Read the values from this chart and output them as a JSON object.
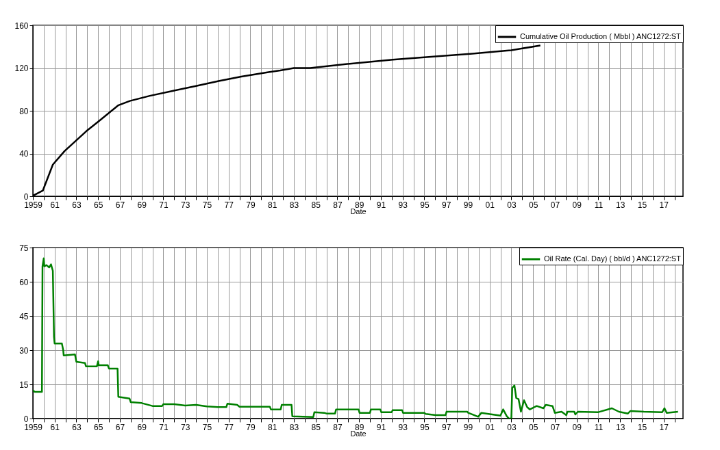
{
  "chart_data": [
    {
      "type": "line",
      "xlabel": "Date",
      "xlim": [
        "1959-01-01",
        "2018-10-15"
      ],
      "xticks": [
        {
          "value": "1959",
          "label": "1959"
        },
        {
          "value": "1960",
          "label": null
        },
        {
          "value": "1961",
          "label": "61"
        },
        {
          "value": "1962",
          "label": null
        },
        {
          "value": "1963",
          "label": "63"
        },
        {
          "value": "1964",
          "label": null
        },
        {
          "value": "1965",
          "label": "65"
        },
        {
          "value": "1966",
          "label": null
        },
        {
          "value": "1967",
          "label": "67"
        },
        {
          "value": "1968",
          "label": null
        },
        {
          "value": "1969",
          "label": "69"
        },
        {
          "value": "1970",
          "label": null
        },
        {
          "value": "1971",
          "label": "71"
        },
        {
          "value": "1972",
          "label": null
        },
        {
          "value": "1973",
          "label": "73"
        },
        {
          "value": "1974",
          "label": null
        },
        {
          "value": "1975",
          "label": "75"
        },
        {
          "value": "1976",
          "label": null
        },
        {
          "value": "1977",
          "label": "77"
        },
        {
          "value": "1978",
          "label": null
        },
        {
          "value": "1979",
          "label": "79"
        },
        {
          "value": "1980",
          "label": null
        },
        {
          "value": "1981",
          "label": "81"
        },
        {
          "value": "1982",
          "label": null
        },
        {
          "value": "1983",
          "label": "83"
        },
        {
          "value": "1984",
          "label": null
        },
        {
          "value": "1985",
          "label": "85"
        },
        {
          "value": "1986",
          "label": null
        },
        {
          "value": "1987",
          "label": "87"
        },
        {
          "value": "1988",
          "label": null
        },
        {
          "value": "1989",
          "label": "89"
        },
        {
          "value": "1990",
          "label": null
        },
        {
          "value": "1991",
          "label": "91"
        },
        {
          "value": "1992",
          "label": null
        },
        {
          "value": "1993",
          "label": "93"
        },
        {
          "value": "1994",
          "label": null
        },
        {
          "value": "1995",
          "label": "95"
        },
        {
          "value": "1996",
          "label": null
        },
        {
          "value": "1997",
          "label": "97"
        },
        {
          "value": "1998",
          "label": null
        },
        {
          "value": "1999",
          "label": "99"
        },
        {
          "value": "2000",
          "label": null
        },
        {
          "value": "2001",
          "label": "01"
        },
        {
          "value": "2002",
          "label": null
        },
        {
          "value": "2003",
          "label": "03"
        },
        {
          "value": "2004",
          "label": null
        },
        {
          "value": "2005",
          "label": "05"
        },
        {
          "value": "2006",
          "label": null
        },
        {
          "value": "2007",
          "label": "07"
        },
        {
          "value": "2008",
          "label": null
        },
        {
          "value": "2009",
          "label": "09"
        },
        {
          "value": "2010",
          "label": null
        },
        {
          "value": "2011",
          "label": "11"
        },
        {
          "value": "2012",
          "label": null
        },
        {
          "value": "2013",
          "label": "13"
        },
        {
          "value": "2014",
          "label": null
        },
        {
          "value": "2015",
          "label": "15"
        },
        {
          "value": "2016",
          "label": null
        },
        {
          "value": "2017",
          "label": "17"
        },
        {
          "value": "2018",
          "label": null
        }
      ],
      "ylim": [
        0,
        160
      ],
      "yticks": [
        0,
        40,
        80,
        120,
        160
      ],
      "grid": true,
      "legend": "top right",
      "marker": "none",
      "series": [
        {
          "name": "Cumulative Oil Production ( Mbbl ) ANC1272:ST",
          "color": "#000000",
          "x": [
            "1959-01",
            "1959-12",
            "1960-11",
            "1961-12",
            "1963-12",
            "1965-01",
            "1966-11",
            "1967-12",
            "1969-10",
            "1971-12",
            "1974-01",
            "1976-02",
            "1978-03",
            "1980-09",
            "1981-10",
            "1983-01",
            "1984-07",
            "1987-12",
            "1992-02",
            "1996-04",
            "1999-06",
            "2002-08",
            "2003-01",
            "2005-09"
          ],
          "values": [
            0.5,
            5.3,
            29.6,
            42.3,
            60.9,
            69.8,
            85,
            89.2,
            94,
            98.7,
            103.2,
            107.8,
            112,
            116.2,
            117.7,
            120,
            120,
            123.8,
            127.8,
            131,
            133.5,
            136.3,
            136.7,
            141.1
          ]
        }
      ]
    },
    {
      "type": "line",
      "xlabel": "Date",
      "xlim": [
        "1959-01-01",
        "2018-10-15"
      ],
      "xticks": [
        {
          "value": "1959",
          "label": "1959"
        },
        {
          "value": "1960",
          "label": null
        },
        {
          "value": "1961",
          "label": "61"
        },
        {
          "value": "1962",
          "label": null
        },
        {
          "value": "1963",
          "label": "63"
        },
        {
          "value": "1964",
          "label": null
        },
        {
          "value": "1965",
          "label": "65"
        },
        {
          "value": "1966",
          "label": null
        },
        {
          "value": "1967",
          "label": "67"
        },
        {
          "value": "1968",
          "label": null
        },
        {
          "value": "1969",
          "label": "69"
        },
        {
          "value": "1970",
          "label": null
        },
        {
          "value": "1971",
          "label": "71"
        },
        {
          "value": "1972",
          "label": null
        },
        {
          "value": "1973",
          "label": "73"
        },
        {
          "value": "1974",
          "label": null
        },
        {
          "value": "1975",
          "label": "75"
        },
        {
          "value": "1976",
          "label": null
        },
        {
          "value": "1977",
          "label": "77"
        },
        {
          "value": "1978",
          "label": null
        },
        {
          "value": "1979",
          "label": "79"
        },
        {
          "value": "1980",
          "label": null
        },
        {
          "value": "1981",
          "label": "81"
        },
        {
          "value": "1982",
          "label": null
        },
        {
          "value": "1983",
          "label": "83"
        },
        {
          "value": "1984",
          "label": null
        },
        {
          "value": "1985",
          "label": "85"
        },
        {
          "value": "1986",
          "label": null
        },
        {
          "value": "1987",
          "label": "87"
        },
        {
          "value": "1988",
          "label": null
        },
        {
          "value": "1989",
          "label": "89"
        },
        {
          "value": "1990",
          "label": null
        },
        {
          "value": "1991",
          "label": "91"
        },
        {
          "value": "1992",
          "label": null
        },
        {
          "value": "1993",
          "label": "93"
        },
        {
          "value": "1994",
          "label": null
        },
        {
          "value": "1995",
          "label": "95"
        },
        {
          "value": "1996",
          "label": null
        },
        {
          "value": "1997",
          "label": "97"
        },
        {
          "value": "1998",
          "label": null
        },
        {
          "value": "1999",
          "label": "99"
        },
        {
          "value": "2000",
          "label": null
        },
        {
          "value": "2001",
          "label": "01"
        },
        {
          "value": "2002",
          "label": null
        },
        {
          "value": "2003",
          "label": "03"
        },
        {
          "value": "2004",
          "label": null
        },
        {
          "value": "2005",
          "label": "05"
        },
        {
          "value": "2006",
          "label": null
        },
        {
          "value": "2007",
          "label": "07"
        },
        {
          "value": "2008",
          "label": null
        },
        {
          "value": "2009",
          "label": "09"
        },
        {
          "value": "2010",
          "label": null
        },
        {
          "value": "2011",
          "label": "11"
        },
        {
          "value": "2012",
          "label": null
        },
        {
          "value": "2013",
          "label": "13"
        },
        {
          "value": "2014",
          "label": null
        },
        {
          "value": "2015",
          "label": "15"
        },
        {
          "value": "2016",
          "label": null
        },
        {
          "value": "2017",
          "label": "17"
        },
        {
          "value": "2018",
          "label": null
        }
      ],
      "ylim": [
        0,
        75
      ],
      "yticks": [
        0,
        15,
        30,
        45,
        60,
        75
      ],
      "grid": true,
      "legend": "top right",
      "marker": "none",
      "series": [
        {
          "name": "Oil Rate (Cal. Day) ( bbl/d ) ANC1272:ST",
          "color": "#008000",
          "x": [
            "1959-01-01",
            "1959-03-01",
            "1959-11-01",
            "1959-11-20",
            "1960-01-01",
            "1960-01-20",
            "1960-04-01",
            "1960-07-01",
            "1960-09-01",
            "1960-11-01",
            "1960-12-10",
            "1961-01-01",
            "1961-09-01",
            "1961-10-15",
            "1961-11-01",
            "1962-11-15",
            "1963-01-01",
            "1963-10-15",
            "1963-11-20",
            "1964-11-20",
            "1965-01-01",
            "1965-01-20",
            "1965-11-20",
            "1966-01-01",
            "1966-10-15",
            "1966-11-10",
            "1967-11-20",
            "1968-01-01",
            "1969-01-01",
            "1970-01-01",
            "1970-11-20",
            "1971-01-01",
            "1972-01-01",
            "1973-01-01",
            "1974-01-01",
            "1975-01-01",
            "1976-01-01",
            "1976-10-15",
            "1976-11-20",
            "1977-10-15",
            "1978-01-01",
            "1980-10-15",
            "1980-11-20",
            "1981-10-15",
            "1981-11-20",
            "1982-10-15",
            "1982-11-10",
            "1984-10-15",
            "1984-11-20",
            "1985-10-15",
            "1986-01-01",
            "1986-10-15",
            "1986-11-20",
            "1988-12-15",
            "1989-01-15",
            "1990-01-01",
            "1990-02-01",
            "1990-12-15",
            "1991-01-15",
            "1992-01-01",
            "1992-02-01",
            "1992-12-15",
            "1993-01-15",
            "1995-01-01",
            "1995-02-15",
            "1996-01-15",
            "1996-12-15",
            "1997-01-15",
            "1998-12-15",
            "1999-01-15",
            "1999-12-15",
            "2000-04-01",
            "2002-01-01",
            "2002-04-01",
            "2002-08-01",
            "2002-10-15",
            "2003-01-01",
            "2003-02-01",
            "2003-04-15",
            "2003-06-15",
            "2003-09-01",
            "2003-11-20",
            "2004-03-01",
            "2004-06-15",
            "2004-09-15",
            "2005-05-01",
            "2005-12-15",
            "2006-03-01",
            "2006-10-15",
            "2007-01-01",
            "2007-08-15",
            "2008-01-20",
            "2008-03-01",
            "2008-10-15",
            "2008-11-20",
            "2009-02-15",
            "2011-01-01",
            "2012-04-01",
            "2012-11-20",
            "2013-09-20",
            "2013-12-10",
            "2015-03-15",
            "2016-11-15",
            "2017-02-01",
            "2017-04-15",
            "2018-05-01"
          ],
          "values": [
            12.5,
            11.7,
            11.7,
            66.8,
            70.3,
            66.8,
            67.3,
            66.3,
            67.6,
            64.8,
            35.9,
            32.9,
            32.9,
            30.1,
            27.7,
            28.1,
            24.9,
            24.4,
            22.9,
            22.9,
            25.1,
            23.4,
            23.4,
            21.9,
            21.9,
            9.5,
            8.8,
            7.2,
            6.8,
            5.5,
            5.5,
            6.3,
            6.3,
            5.7,
            6.0,
            5.3,
            5.0,
            5.0,
            6.5,
            6.0,
            5.2,
            5.2,
            4.0,
            4.0,
            6.0,
            6.0,
            1.0,
            0.7,
            2.8,
            2.5,
            2.2,
            2.2,
            4.0,
            4.0,
            2.5,
            2.5,
            4.0,
            4.0,
            2.8,
            2.8,
            3.7,
            3.7,
            2.5,
            2.5,
            2.0,
            1.5,
            1.5,
            3.0,
            3.0,
            2.5,
            0.8,
            2.5,
            1.3,
            4.0,
            1.0,
            0.0,
            0.0,
            13.5,
            14.5,
            9.0,
            8.5,
            3.0,
            8.0,
            5.0,
            4.0,
            5.5,
            4.5,
            6.0,
            5.5,
            2.5,
            3.0,
            1.5,
            3.0,
            3.0,
            1.8,
            3.0,
            2.8,
            4.5,
            3.0,
            2.2,
            3.3,
            3.0,
            2.8,
            4.5,
            2.5,
            3.0
          ]
        }
      ]
    }
  ]
}
